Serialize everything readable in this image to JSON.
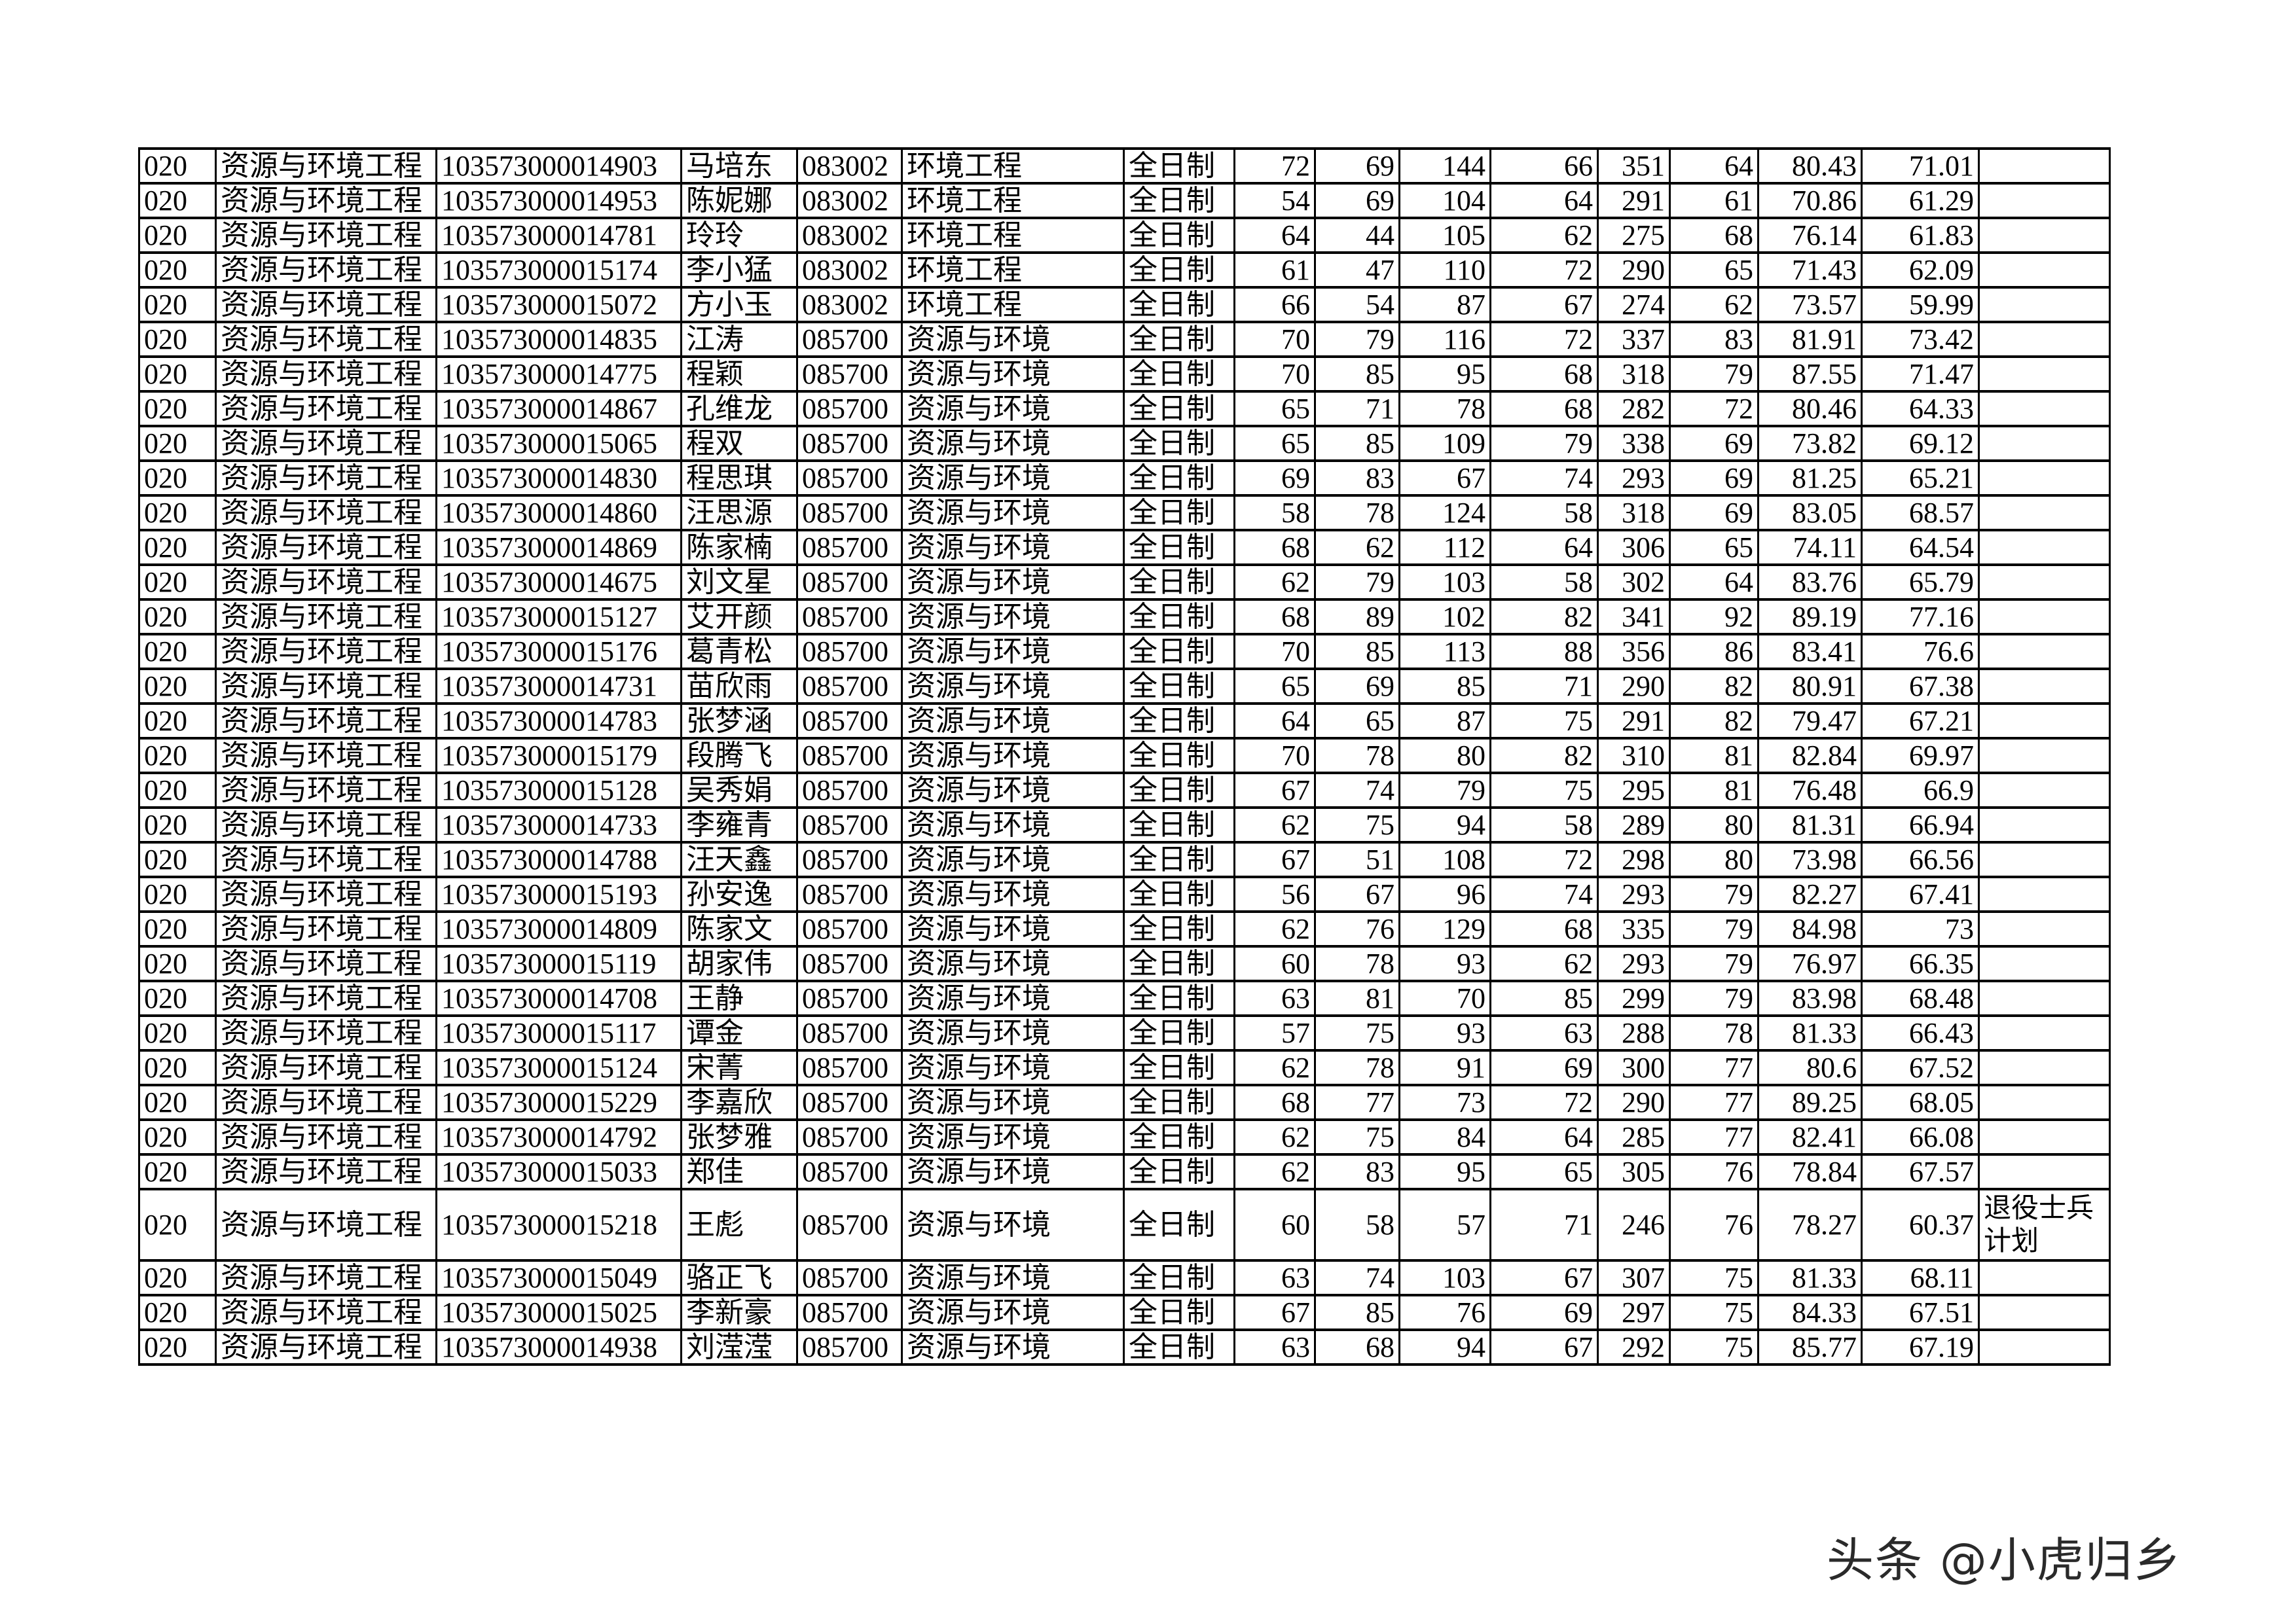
{
  "table": {
    "rows": [
      [
        "020",
        "资源与环境工程",
        "103573000014903",
        "马培东",
        "083002",
        "环境工程",
        "全日制",
        "72",
        "69",
        "144",
        "66",
        "351",
        "64",
        "80.43",
        "71.01",
        ""
      ],
      [
        "020",
        "资源与环境工程",
        "103573000014953",
        "陈妮娜",
        "083002",
        "环境工程",
        "全日制",
        "54",
        "69",
        "104",
        "64",
        "291",
        "61",
        "70.86",
        "61.29",
        ""
      ],
      [
        "020",
        "资源与环境工程",
        "103573000014781",
        "玲玲",
        "083002",
        "环境工程",
        "全日制",
        "64",
        "44",
        "105",
        "62",
        "275",
        "68",
        "76.14",
        "61.83",
        ""
      ],
      [
        "020",
        "资源与环境工程",
        "103573000015174",
        "李小猛",
        "083002",
        "环境工程",
        "全日制",
        "61",
        "47",
        "110",
        "72",
        "290",
        "65",
        "71.43",
        "62.09",
        ""
      ],
      [
        "020",
        "资源与环境工程",
        "103573000015072",
        "方小玉",
        "083002",
        "环境工程",
        "全日制",
        "66",
        "54",
        "87",
        "67",
        "274",
        "62",
        "73.57",
        "59.99",
        ""
      ],
      [
        "020",
        "资源与环境工程",
        "103573000014835",
        "江涛",
        "085700",
        "资源与环境",
        "全日制",
        "70",
        "79",
        "116",
        "72",
        "337",
        "83",
        "81.91",
        "73.42",
        ""
      ],
      [
        "020",
        "资源与环境工程",
        "103573000014775",
        "程颖",
        "085700",
        "资源与环境",
        "全日制",
        "70",
        "85",
        "95",
        "68",
        "318",
        "79",
        "87.55",
        "71.47",
        ""
      ],
      [
        "020",
        "资源与环境工程",
        "103573000014867",
        "孔维龙",
        "085700",
        "资源与环境",
        "全日制",
        "65",
        "71",
        "78",
        "68",
        "282",
        "72",
        "80.46",
        "64.33",
        ""
      ],
      [
        "020",
        "资源与环境工程",
        "103573000015065",
        "程双",
        "085700",
        "资源与环境",
        "全日制",
        "65",
        "85",
        "109",
        "79",
        "338",
        "69",
        "73.82",
        "69.12",
        ""
      ],
      [
        "020",
        "资源与环境工程",
        "103573000014830",
        "程思琪",
        "085700",
        "资源与环境",
        "全日制",
        "69",
        "83",
        "67",
        "74",
        "293",
        "69",
        "81.25",
        "65.21",
        ""
      ],
      [
        "020",
        "资源与环境工程",
        "103573000014860",
        "汪思源",
        "085700",
        "资源与环境",
        "全日制",
        "58",
        "78",
        "124",
        "58",
        "318",
        "69",
        "83.05",
        "68.57",
        ""
      ],
      [
        "020",
        "资源与环境工程",
        "103573000014869",
        "陈家楠",
        "085700",
        "资源与环境",
        "全日制",
        "68",
        "62",
        "112",
        "64",
        "306",
        "65",
        "74.11",
        "64.54",
        ""
      ],
      [
        "020",
        "资源与环境工程",
        "103573000014675",
        "刘文星",
        "085700",
        "资源与环境",
        "全日制",
        "62",
        "79",
        "103",
        "58",
        "302",
        "64",
        "83.76",
        "65.79",
        ""
      ],
      [
        "020",
        "资源与环境工程",
        "103573000015127",
        "艾开颜",
        "085700",
        "资源与环境",
        "全日制",
        "68",
        "89",
        "102",
        "82",
        "341",
        "92",
        "89.19",
        "77.16",
        ""
      ],
      [
        "020",
        "资源与环境工程",
        "103573000015176",
        "葛青松",
        "085700",
        "资源与环境",
        "全日制",
        "70",
        "85",
        "113",
        "88",
        "356",
        "86",
        "83.41",
        "76.6",
        ""
      ],
      [
        "020",
        "资源与环境工程",
        "103573000014731",
        "苗欣雨",
        "085700",
        "资源与环境",
        "全日制",
        "65",
        "69",
        "85",
        "71",
        "290",
        "82",
        "80.91",
        "67.38",
        ""
      ],
      [
        "020",
        "资源与环境工程",
        "103573000014783",
        "张梦涵",
        "085700",
        "资源与环境",
        "全日制",
        "64",
        "65",
        "87",
        "75",
        "291",
        "82",
        "79.47",
        "67.21",
        ""
      ],
      [
        "020",
        "资源与环境工程",
        "103573000015179",
        "段腾飞",
        "085700",
        "资源与环境",
        "全日制",
        "70",
        "78",
        "80",
        "82",
        "310",
        "81",
        "82.84",
        "69.97",
        ""
      ],
      [
        "020",
        "资源与环境工程",
        "103573000015128",
        "吴秀娟",
        "085700",
        "资源与环境",
        "全日制",
        "67",
        "74",
        "79",
        "75",
        "295",
        "81",
        "76.48",
        "66.9",
        ""
      ],
      [
        "020",
        "资源与环境工程",
        "103573000014733",
        "李雍青",
        "085700",
        "资源与环境",
        "全日制",
        "62",
        "75",
        "94",
        "58",
        "289",
        "80",
        "81.31",
        "66.94",
        ""
      ],
      [
        "020",
        "资源与环境工程",
        "103573000014788",
        "汪天鑫",
        "085700",
        "资源与环境",
        "全日制",
        "67",
        "51",
        "108",
        "72",
        "298",
        "80",
        "73.98",
        "66.56",
        ""
      ],
      [
        "020",
        "资源与环境工程",
        "103573000015193",
        "孙安逸",
        "085700",
        "资源与环境",
        "全日制",
        "56",
        "67",
        "96",
        "74",
        "293",
        "79",
        "82.27",
        "67.41",
        ""
      ],
      [
        "020",
        "资源与环境工程",
        "103573000014809",
        "陈家文",
        "085700",
        "资源与环境",
        "全日制",
        "62",
        "76",
        "129",
        "68",
        "335",
        "79",
        "84.98",
        "73",
        ""
      ],
      [
        "020",
        "资源与环境工程",
        "103573000015119",
        "胡家伟",
        "085700",
        "资源与环境",
        "全日制",
        "60",
        "78",
        "93",
        "62",
        "293",
        "79",
        "76.97",
        "66.35",
        ""
      ],
      [
        "020",
        "资源与环境工程",
        "103573000014708",
        "王静",
        "085700",
        "资源与环境",
        "全日制",
        "63",
        "81",
        "70",
        "85",
        "299",
        "79",
        "83.98",
        "68.48",
        ""
      ],
      [
        "020",
        "资源与环境工程",
        "103573000015117",
        "谭金",
        "085700",
        "资源与环境",
        "全日制",
        "57",
        "75",
        "93",
        "63",
        "288",
        "78",
        "81.33",
        "66.43",
        ""
      ],
      [
        "020",
        "资源与环境工程",
        "103573000015124",
        "宋菁",
        "085700",
        "资源与环境",
        "全日制",
        "62",
        "78",
        "91",
        "69",
        "300",
        "77",
        "80.6",
        "67.52",
        ""
      ],
      [
        "020",
        "资源与环境工程",
        "103573000015229",
        "李嘉欣",
        "085700",
        "资源与环境",
        "全日制",
        "68",
        "77",
        "73",
        "72",
        "290",
        "77",
        "89.25",
        "68.05",
        ""
      ],
      [
        "020",
        "资源与环境工程",
        "103573000014792",
        "张梦雅",
        "085700",
        "资源与环境",
        "全日制",
        "62",
        "75",
        "84",
        "64",
        "285",
        "77",
        "82.41",
        "66.08",
        ""
      ],
      [
        "020",
        "资源与环境工程",
        "103573000015033",
        "郑佳",
        "085700",
        "资源与环境",
        "全日制",
        "62",
        "83",
        "95",
        "65",
        "305",
        "76",
        "78.84",
        "67.57",
        ""
      ],
      [
        "020",
        "资源与环境工程",
        "103573000015218",
        "王彪",
        "085700",
        "资源与环境",
        "全日制",
        "60",
        "58",
        "57",
        "71",
        "246",
        "76",
        "78.27",
        "60.37",
        "退役士兵计划"
      ],
      [
        "020",
        "资源与环境工程",
        "103573000015049",
        "骆正飞",
        "085700",
        "资源与环境",
        "全日制",
        "63",
        "74",
        "103",
        "67",
        "307",
        "75",
        "81.33",
        "68.11",
        ""
      ],
      [
        "020",
        "资源与环境工程",
        "103573000015025",
        "李新豪",
        "085700",
        "资源与环境",
        "全日制",
        "67",
        "85",
        "76",
        "69",
        "297",
        "75",
        "84.33",
        "67.51",
        ""
      ],
      [
        "020",
        "资源与环境工程",
        "103573000014938",
        "刘滢滢",
        "085700",
        "资源与环境",
        "全日制",
        "63",
        "68",
        "94",
        "67",
        "292",
        "75",
        "85.77",
        "67.19",
        ""
      ]
    ]
  },
  "watermark": "头条 @小虎归乡"
}
